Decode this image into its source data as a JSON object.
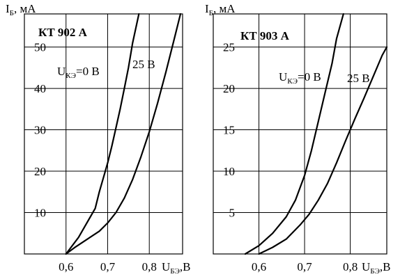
{
  "chart_data": [
    {
      "type": "line",
      "title": "КТ 902 А",
      "ylabel_main": "I",
      "ylabel_sub": "Б",
      "ylabel_unit": ", мА",
      "xlabel_main": "U",
      "xlabel_sub": "БЭ",
      "xlabel_unit": ",В",
      "xlim": [
        0.5,
        0.88
      ],
      "ylim": [
        0,
        58
      ],
      "xticks": [
        0.6,
        0.7,
        0.8
      ],
      "xtick_labels": [
        "0,6",
        "0,7",
        "0,8"
      ],
      "yticks": [
        10,
        20,
        30,
        40,
        50
      ],
      "ytick_labels": [
        "10",
        "20",
        "30",
        "40",
        "50"
      ],
      "grid": true,
      "series": [
        {
          "name": "UКЭ=0 В",
          "label_main": "U",
          "label_sub": "КЭ",
          "label_rest": "=0 В",
          "x": [
            0.6,
            0.63,
            0.65,
            0.67,
            0.68,
            0.69,
            0.7,
            0.71,
            0.72,
            0.73,
            0.74,
            0.75,
            0.76,
            0.775
          ],
          "y": [
            0,
            4,
            7.5,
            11,
            15,
            18.5,
            22,
            26,
            30.5,
            35,
            40,
            45,
            51,
            58
          ]
        },
        {
          "name": "25 В",
          "label_main": "25 В",
          "x": [
            0.6,
            0.62,
            0.65,
            0.68,
            0.7,
            0.72,
            0.74,
            0.76,
            0.78,
            0.8,
            0.82,
            0.84,
            0.86,
            0.875
          ],
          "y": [
            0,
            1.5,
            3.5,
            5.5,
            7.5,
            10,
            13.5,
            18,
            23.5,
            29.5,
            36.5,
            44,
            52,
            58
          ]
        }
      ]
    },
    {
      "type": "line",
      "title": "КТ 903 А",
      "ylabel_main": "I",
      "ylabel_sub": "Б",
      "ylabel_unit": ", мА",
      "xlabel_main": "U",
      "xlabel_sub": "БЭ",
      "xlabel_unit": ",В",
      "xlim": [
        0.5,
        0.88
      ],
      "ylim": [
        0,
        29
      ],
      "xticks": [
        0.6,
        0.7,
        0.8
      ],
      "xtick_labels": [
        "0,6",
        "0,7",
        "0,8"
      ],
      "yticks": [
        5,
        10,
        15,
        20,
        25
      ],
      "ytick_labels": [
        "5",
        "10",
        "15",
        "20",
        "25"
      ],
      "grid": true,
      "series": [
        {
          "name": "UКЭ=0 В",
          "label_main": "U",
          "label_sub": "КЭ",
          "label_rest": "=0 В",
          "x": [
            0.57,
            0.6,
            0.63,
            0.66,
            0.68,
            0.7,
            0.715,
            0.73,
            0.745,
            0.76,
            0.77,
            0.785
          ],
          "y": [
            0,
            1,
            2.5,
            4.5,
            6.5,
            9.5,
            12.5,
            16,
            19.5,
            23,
            26,
            29
          ]
        },
        {
          "name": "25 В",
          "label_main": "25 В",
          "x": [
            0.6,
            0.63,
            0.66,
            0.69,
            0.71,
            0.73,
            0.75,
            0.77,
            0.79,
            0.81,
            0.83,
            0.85,
            0.87,
            0.88
          ],
          "y": [
            0,
            0.8,
            1.8,
            3.5,
            4.8,
            6.5,
            8.5,
            11,
            13.7,
            16.3,
            18.8,
            21.4,
            24,
            25
          ]
        }
      ]
    }
  ]
}
